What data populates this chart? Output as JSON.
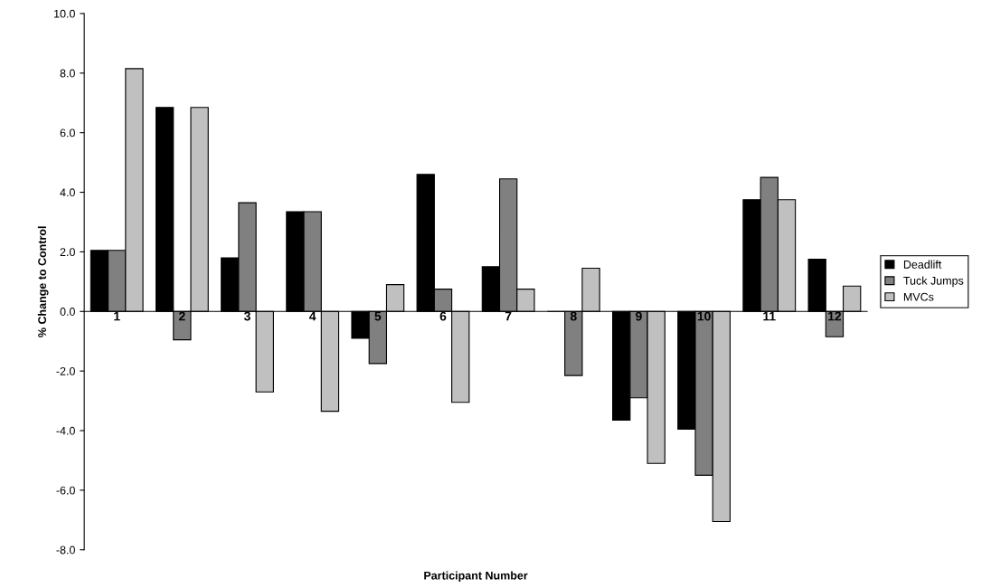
{
  "chart_data": {
    "type": "bar",
    "xlabel": "Participant Number",
    "ylabel": "% Change to Control",
    "categories": [
      "1",
      "2",
      "3",
      "4",
      "5",
      "6",
      "7",
      "8",
      "9",
      "10",
      "11",
      "12"
    ],
    "series": [
      {
        "name": "Deadlift",
        "color": "#000000",
        "values": [
          2.05,
          6.85,
          1.8,
          3.35,
          -0.9,
          4.6,
          1.5,
          0,
          -3.65,
          -3.95,
          3.75,
          1.75
        ]
      },
      {
        "name": "Tuck Jumps",
        "color": "#808080",
        "values": [
          2.05,
          -0.95,
          3.65,
          3.35,
          -1.75,
          0.75,
          4.45,
          -2.15,
          -2.9,
          -5.5,
          4.5,
          -0.85
        ]
      },
      {
        "name": "MVCs",
        "color": "#c0c0c0",
        "values": [
          8.15,
          6.85,
          -2.7,
          -3.35,
          0.9,
          -3.05,
          0.75,
          1.45,
          -5.1,
          -7.05,
          3.75,
          0.85
        ]
      }
    ],
    "ylim": [
      -8,
      10
    ],
    "yticks": [
      {
        "value": -8,
        "label": "-8.0"
      },
      {
        "value": -6,
        "label": "-6.0"
      },
      {
        "value": -4,
        "label": "-4.0"
      },
      {
        "value": -2,
        "label": "-2.0"
      },
      {
        "value": 0,
        "label": "0.0"
      },
      {
        "value": 2,
        "label": "2.0"
      },
      {
        "value": 4,
        "label": "4.0"
      },
      {
        "value": 6,
        "label": "6.0"
      },
      {
        "value": 8,
        "label": "8.0"
      },
      {
        "value": 10,
        "label": "10.0"
      }
    ],
    "grid": false,
    "legend": "right"
  }
}
